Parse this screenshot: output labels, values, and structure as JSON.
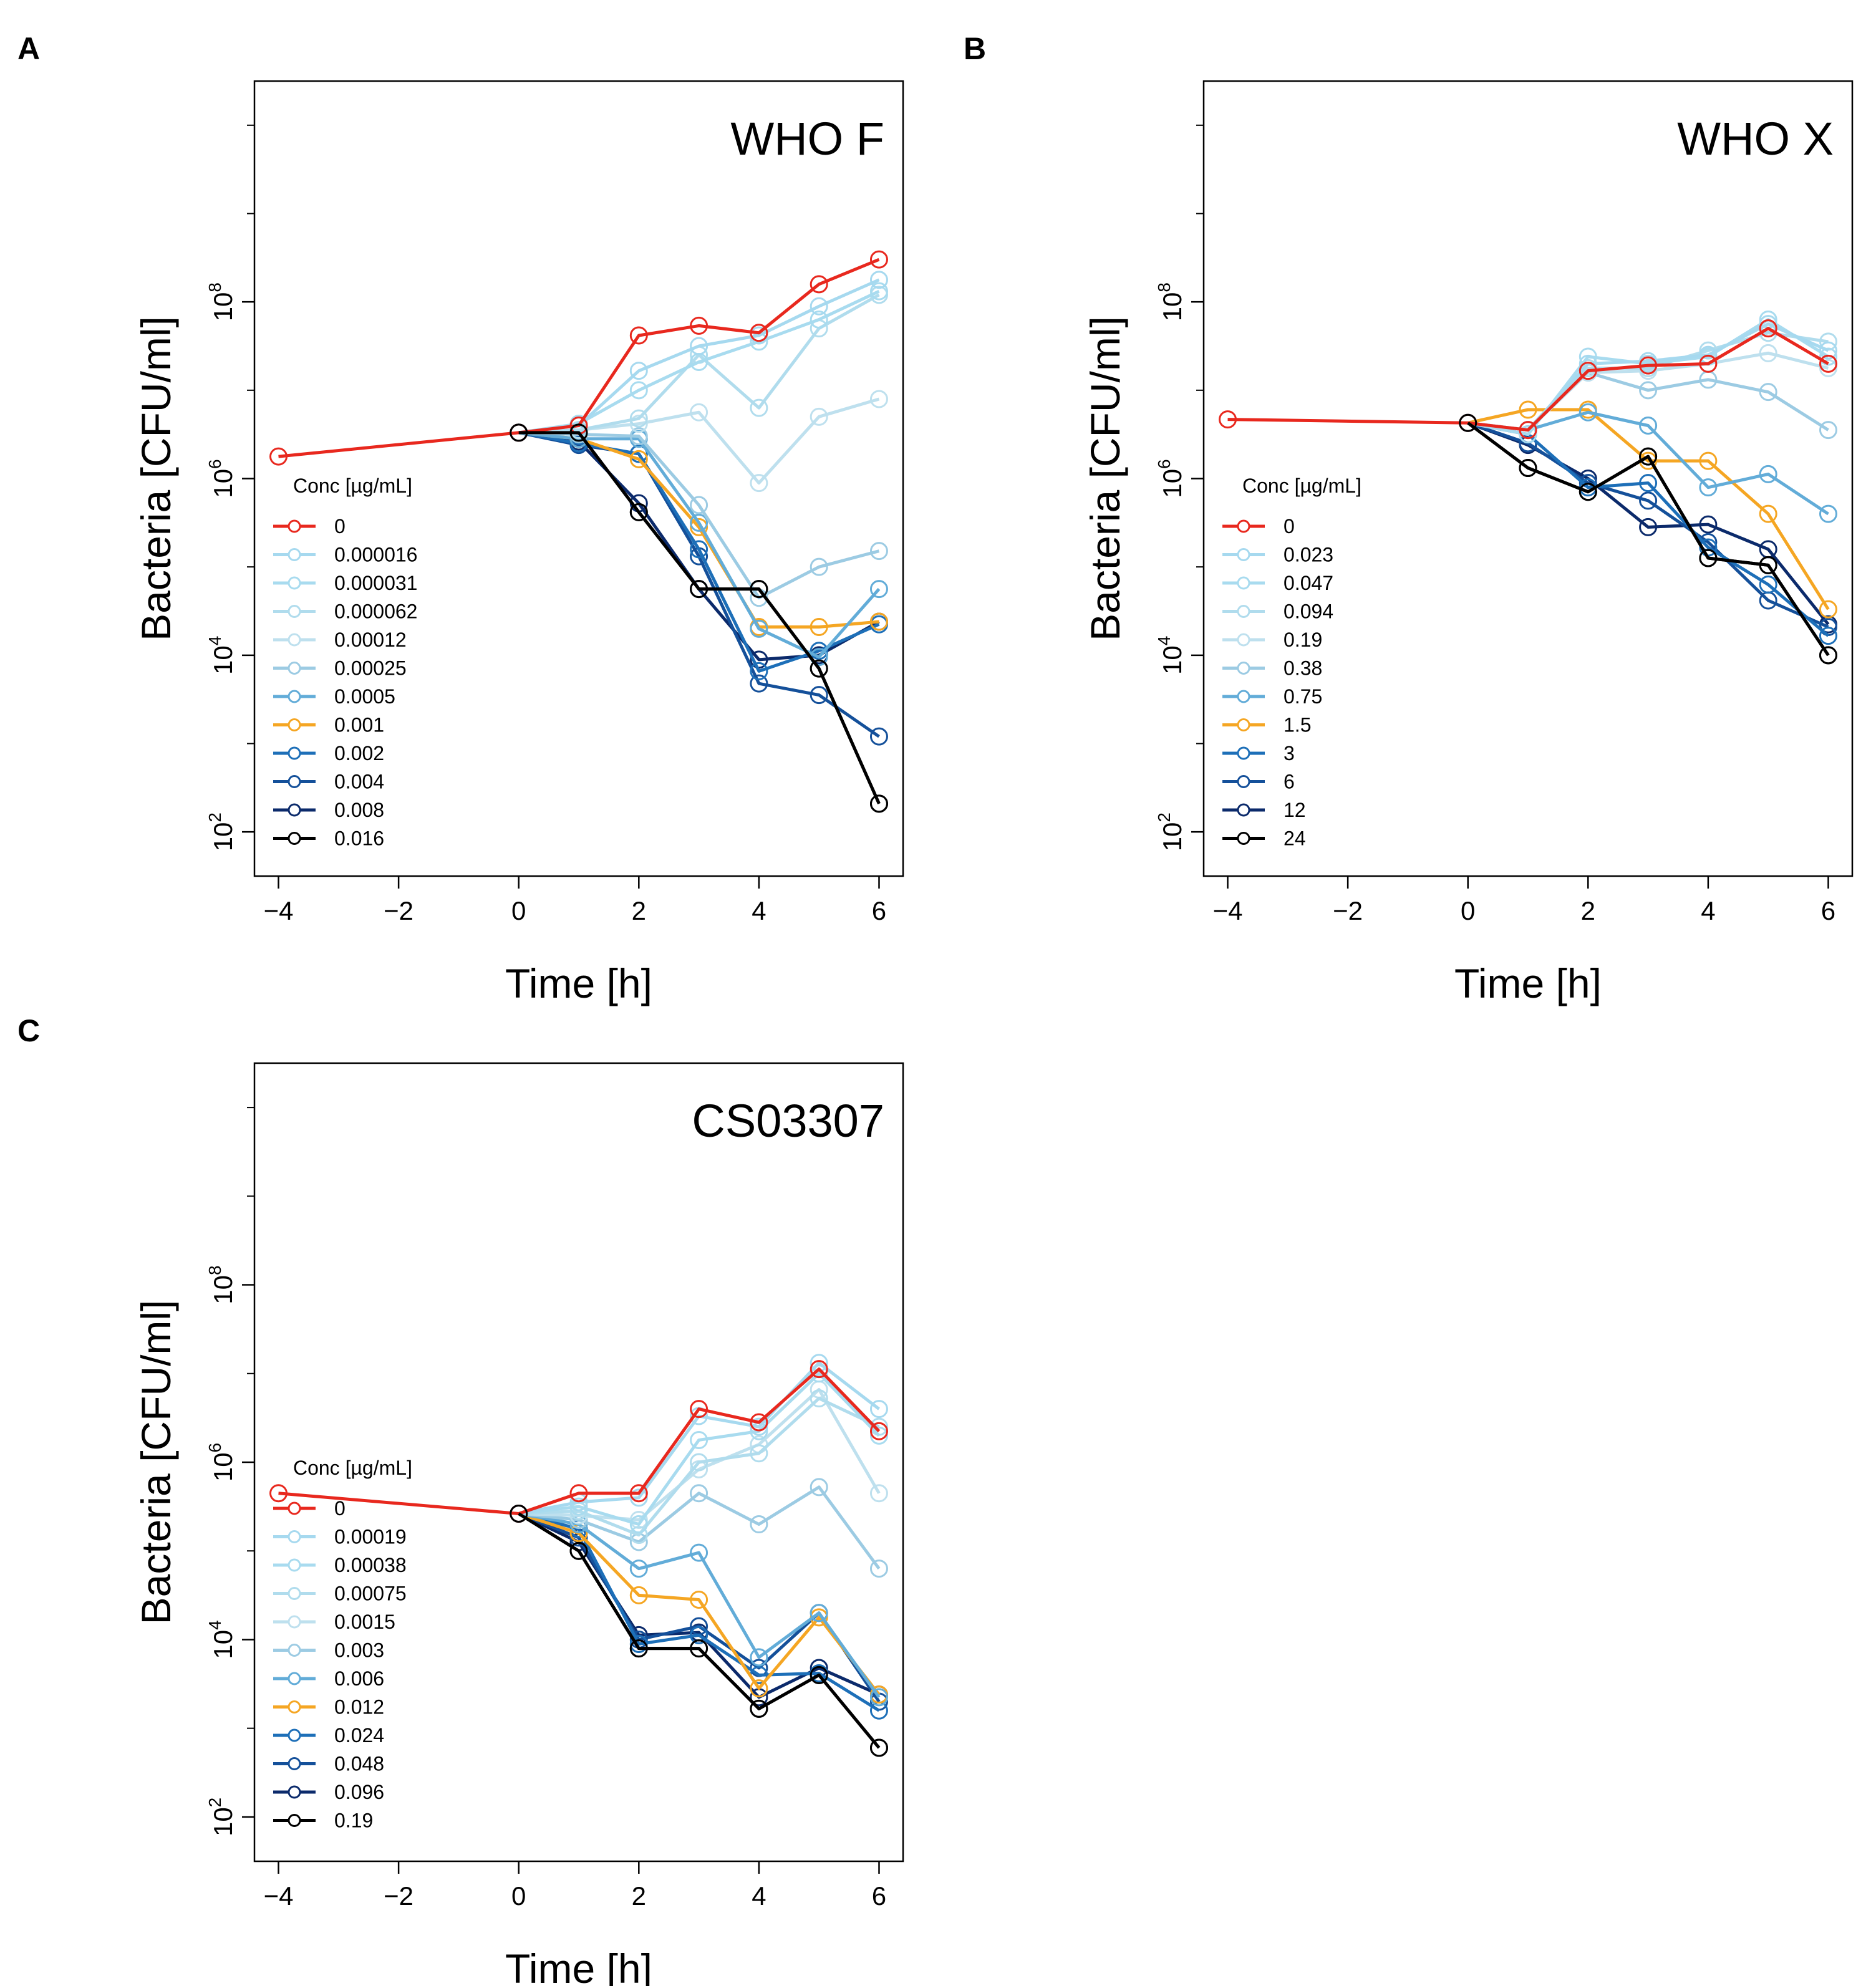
{
  "figure": {
    "colors": [
      "#e8281e",
      "#a6d9ef",
      "#a8dbef",
      "#b0dced",
      "#bee0ee",
      "#9ccbe3",
      "#62acd8",
      "#f5a623",
      "#1d6fb8",
      "#14509a",
      "#0b2a6b",
      "#000000"
    ]
  },
  "chart_data": [
    {
      "panel": "A",
      "type": "line",
      "title": "WHO F",
      "xlabel": "Time [h]",
      "ylabel": "Bacteria [CFU/ml]",
      "y_scale": "log10",
      "xlim": [
        -4.4,
        6.4
      ],
      "ylim_log10": [
        1.5,
        10.5
      ],
      "x_ticks": [
        -4,
        -2,
        0,
        2,
        4,
        6
      ],
      "x_tick_labels": [
        "−4",
        "−2",
        "0",
        "2",
        "4",
        "6"
      ],
      "y_ticks_log10": [
        2,
        4,
        6,
        8
      ],
      "y_tick_labels": [
        {
          "base": "10",
          "exp": "2"
        },
        {
          "base": "10",
          "exp": "4"
        },
        {
          "base": "10",
          "exp": "6"
        },
        {
          "base": "10",
          "exp": "8"
        }
      ],
      "legend_title": "Conc [µg/mL]",
      "series": [
        {
          "name": "0",
          "x": [
            -4,
            0,
            1,
            2,
            3,
            4,
            5,
            6
          ],
          "y_log10": [
            6.25,
            6.52,
            6.6,
            7.62,
            7.73,
            7.65,
            8.2,
            8.48
          ]
        },
        {
          "name": "0.000016",
          "x": [
            0,
            1,
            2,
            3,
            4,
            5,
            6
          ],
          "y_log10": [
            6.52,
            6.6,
            7.22,
            7.5,
            7.62,
            7.95,
            8.25
          ]
        },
        {
          "name": "0.000031",
          "x": [
            0,
            1,
            2,
            3,
            4,
            5,
            6
          ],
          "y_log10": [
            6.52,
            6.62,
            7.0,
            7.32,
            7.55,
            7.8,
            8.12
          ]
        },
        {
          "name": "0.000062",
          "x": [
            0,
            1,
            2,
            3,
            4,
            5,
            6
          ],
          "y_log10": [
            6.52,
            6.55,
            6.68,
            7.4,
            6.8,
            7.7,
            8.08
          ]
        },
        {
          "name": "0.00012",
          "x": [
            0,
            1,
            2,
            3,
            4,
            5,
            6
          ],
          "y_log10": [
            6.52,
            6.55,
            6.62,
            6.75,
            5.95,
            6.7,
            6.9
          ]
        },
        {
          "name": "0.00025",
          "x": [
            0,
            1,
            2,
            3,
            4,
            5,
            6
          ],
          "y_log10": [
            6.52,
            6.5,
            6.48,
            5.7,
            4.65,
            5.0,
            5.18
          ]
        },
        {
          "name": "0.0005",
          "x": [
            0,
            1,
            2,
            3,
            4,
            5,
            6
          ],
          "y_log10": [
            6.52,
            6.45,
            6.45,
            5.5,
            4.3,
            3.98,
            4.75
          ]
        },
        {
          "name": "0.001",
          "x": [
            0,
            1,
            2,
            3,
            4,
            5,
            6
          ],
          "y_log10": [
            6.52,
            6.45,
            6.22,
            5.45,
            4.32,
            4.32,
            4.38
          ]
        },
        {
          "name": "0.002",
          "x": [
            0,
            1,
            2,
            3,
            4,
            5,
            6
          ],
          "y_log10": [
            6.52,
            6.4,
            6.28,
            5.2,
            3.82,
            4.05,
            4.35
          ]
        },
        {
          "name": "0.004",
          "x": [
            0,
            1,
            2,
            3,
            4,
            5,
            6
          ],
          "y_log10": [
            6.52,
            6.38,
            6.28,
            5.12,
            3.68,
            3.55,
            3.08
          ]
        },
        {
          "name": "0.008",
          "x": [
            0,
            1,
            2,
            3,
            4,
            5,
            6
          ],
          "y_log10": [
            6.52,
            6.42,
            5.72,
            4.75,
            3.95,
            4.0,
            4.38
          ]
        },
        {
          "name": "0.016",
          "x": [
            0,
            1,
            2,
            3,
            4,
            5,
            6
          ],
          "y_log10": [
            6.52,
            6.52,
            5.62,
            4.75,
            4.75,
            3.85,
            2.32
          ]
        }
      ]
    },
    {
      "panel": "B",
      "type": "line",
      "title": "WHO X",
      "xlabel": "Time [h]",
      "ylabel": "Bacteria [CFU/ml]",
      "y_scale": "log10",
      "xlim": [
        -4.4,
        6.4
      ],
      "ylim_log10": [
        1.5,
        10.5
      ],
      "x_ticks": [
        -4,
        -2,
        0,
        2,
        4,
        6
      ],
      "x_tick_labels": [
        "−4",
        "−2",
        "0",
        "2",
        "4",
        "6"
      ],
      "y_ticks_log10": [
        2,
        4,
        6,
        8
      ],
      "y_tick_labels": [
        {
          "base": "10",
          "exp": "2"
        },
        {
          "base": "10",
          "exp": "4"
        },
        {
          "base": "10",
          "exp": "6"
        },
        {
          "base": "10",
          "exp": "8"
        }
      ],
      "legend_title": "Conc [µg/mL]",
      "series": [
        {
          "name": "0",
          "x": [
            -4,
            0,
            1,
            2,
            3,
            4,
            5,
            6
          ],
          "y_log10": [
            6.67,
            6.63,
            6.55,
            7.22,
            7.28,
            7.3,
            7.7,
            7.3
          ]
        },
        {
          "name": "0.023",
          "x": [
            0,
            1,
            2,
            3,
            4,
            5,
            6
          ],
          "y_log10": [
            6.63,
            6.55,
            7.3,
            7.33,
            7.4,
            7.75,
            7.45
          ]
        },
        {
          "name": "0.047",
          "x": [
            0,
            1,
            2,
            3,
            4,
            5,
            6
          ],
          "y_log10": [
            6.63,
            6.5,
            7.38,
            7.3,
            7.38,
            7.8,
            7.38
          ]
        },
        {
          "name": "0.094",
          "x": [
            0,
            1,
            2,
            3,
            4,
            5,
            6
          ],
          "y_log10": [
            6.63,
            6.55,
            7.25,
            7.25,
            7.45,
            7.65,
            7.55
          ]
        },
        {
          "name": "0.19",
          "x": [
            0,
            1,
            2,
            3,
            4,
            5,
            6
          ],
          "y_log10": [
            6.63,
            6.55,
            7.2,
            7.22,
            7.3,
            7.42,
            7.25
          ]
        },
        {
          "name": "0.38",
          "x": [
            0,
            1,
            2,
            3,
            4,
            5,
            6
          ],
          "y_log10": [
            6.63,
            6.55,
            7.2,
            7.0,
            7.12,
            6.98,
            6.55
          ]
        },
        {
          "name": "0.75",
          "x": [
            0,
            1,
            2,
            3,
            4,
            5,
            6
          ],
          "y_log10": [
            6.63,
            6.55,
            6.75,
            6.6,
            5.9,
            6.05,
            5.6
          ]
        },
        {
          "name": "1.5",
          "x": [
            0,
            1,
            2,
            3,
            4,
            5,
            6
          ],
          "y_log10": [
            6.63,
            6.78,
            6.78,
            6.2,
            6.2,
            5.6,
            4.52
          ]
        },
        {
          "name": "3",
          "x": [
            0,
            1,
            2,
            3,
            4,
            5,
            6
          ],
          "y_log10": [
            6.63,
            6.5,
            5.9,
            5.95,
            5.22,
            4.8,
            4.22
          ]
        },
        {
          "name": "6",
          "x": [
            0,
            1,
            2,
            3,
            4,
            5,
            6
          ],
          "y_log10": [
            6.63,
            6.4,
            5.95,
            5.75,
            5.28,
            4.62,
            4.32
          ]
        },
        {
          "name": "12",
          "x": [
            0,
            1,
            2,
            3,
            4,
            5,
            6
          ],
          "y_log10": [
            6.63,
            6.38,
            6.0,
            5.45,
            5.48,
            5.2,
            4.35
          ]
        },
        {
          "name": "24",
          "x": [
            0,
            1,
            2,
            3,
            4,
            5,
            6
          ],
          "y_log10": [
            6.63,
            6.12,
            5.85,
            6.25,
            5.1,
            5.02,
            4.0
          ]
        }
      ]
    },
    {
      "panel": "C",
      "type": "line",
      "title": "CS03307",
      "xlabel": "Time [h]",
      "ylabel": "Bacteria [CFU/ml]",
      "y_scale": "log10",
      "xlim": [
        -4.4,
        6.4
      ],
      "ylim_log10": [
        1.5,
        10.5
      ],
      "x_ticks": [
        -4,
        -2,
        0,
        2,
        4,
        6
      ],
      "x_tick_labels": [
        "−4",
        "−2",
        "0",
        "2",
        "4",
        "6"
      ],
      "y_ticks_log10": [
        2,
        4,
        6,
        8
      ],
      "y_tick_labels": [
        {
          "base": "10",
          "exp": "2"
        },
        {
          "base": "10",
          "exp": "4"
        },
        {
          "base": "10",
          "exp": "6"
        },
        {
          "base": "10",
          "exp": "8"
        }
      ],
      "legend_title": "Conc [µg/mL]",
      "series": [
        {
          "name": "0",
          "x": [
            -4,
            0,
            1,
            2,
            3,
            4,
            5,
            6
          ],
          "y_log10": [
            5.65,
            5.42,
            5.65,
            5.65,
            6.6,
            6.45,
            7.05,
            6.35
          ]
        },
        {
          "name": "0.00019",
          "x": [
            0,
            1,
            2,
            3,
            4,
            5,
            6
          ],
          "y_log10": [
            5.42,
            5.55,
            5.6,
            6.52,
            6.4,
            7.12,
            6.6
          ]
        },
        {
          "name": "0.00038",
          "x": [
            0,
            1,
            2,
            3,
            4,
            5,
            6
          ],
          "y_log10": [
            5.42,
            5.5,
            5.3,
            6.25,
            6.35,
            7.0,
            6.3
          ]
        },
        {
          "name": "0.00075",
          "x": [
            0,
            1,
            2,
            3,
            4,
            5,
            6
          ],
          "y_log10": [
            5.42,
            5.45,
            5.18,
            6.0,
            6.1,
            6.72,
            6.4
          ]
        },
        {
          "name": "0.0015",
          "x": [
            0,
            1,
            2,
            3,
            4,
            5,
            6
          ],
          "y_log10": [
            5.42,
            5.4,
            5.35,
            5.92,
            6.2,
            6.82,
            5.65
          ]
        },
        {
          "name": "0.003",
          "x": [
            0,
            1,
            2,
            3,
            4,
            5,
            6
          ],
          "y_log10": [
            5.42,
            5.35,
            5.1,
            5.65,
            5.3,
            5.72,
            4.8
          ]
        },
        {
          "name": "0.006",
          "x": [
            0,
            1,
            2,
            3,
            4,
            5,
            6
          ],
          "y_log10": [
            5.42,
            5.3,
            4.8,
            4.98,
            3.8,
            4.3,
            3.35
          ]
        },
        {
          "name": "0.012",
          "x": [
            0,
            1,
            2,
            3,
            4,
            5,
            6
          ],
          "y_log10": [
            5.42,
            5.2,
            4.5,
            4.45,
            3.45,
            4.25,
            3.38
          ]
        },
        {
          "name": "0.024",
          "x": [
            0,
            1,
            2,
            3,
            4,
            5,
            6
          ],
          "y_log10": [
            5.42,
            5.25,
            3.95,
            4.05,
            3.6,
            3.62,
            3.2
          ]
        },
        {
          "name": "0.048",
          "x": [
            0,
            1,
            2,
            3,
            4,
            5,
            6
          ],
          "y_log10": [
            5.42,
            5.15,
            4.0,
            4.15,
            3.68,
            4.3,
            3.3
          ]
        },
        {
          "name": "0.096",
          "x": [
            0,
            1,
            2,
            3,
            4,
            5,
            6
          ],
          "y_log10": [
            5.42,
            5.1,
            4.05,
            4.08,
            3.35,
            3.68,
            3.38
          ]
        },
        {
          "name": "0.19",
          "x": [
            0,
            1,
            2,
            3,
            4,
            5,
            6
          ],
          "y_log10": [
            5.42,
            5.0,
            3.9,
            3.9,
            3.22,
            3.6,
            2.78
          ]
        }
      ]
    }
  ]
}
